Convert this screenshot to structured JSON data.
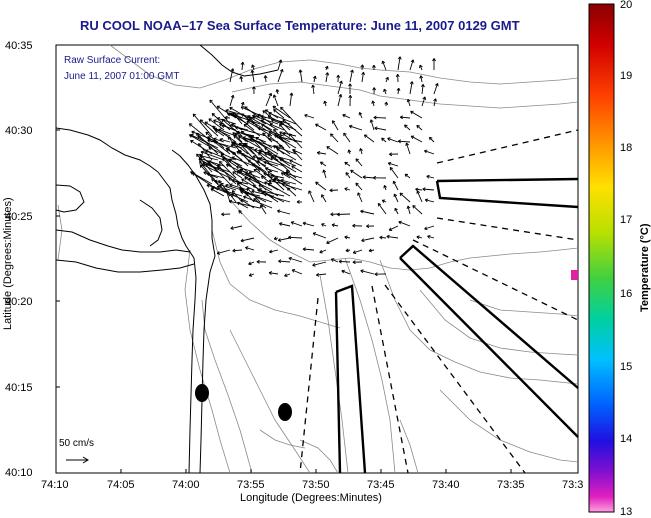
{
  "title": "RU COOL  NOAA–17  Sea Surface Temperature:  June 11, 2007 0129 GMT",
  "subtitle_line1": "Raw Surface Current:",
  "subtitle_line2": "June 11, 2007 01:00 GMT",
  "x_axis_label": "Longitude (Degrees:Minutes)",
  "y_axis_label": "Latitude (Degrees:Minutes)",
  "x_ticks": [
    "74:10",
    "74:05",
    "74:00",
    "73:55",
    "73:50",
    "73:45",
    "73:40",
    "73:35",
    "73:3"
  ],
  "y_ticks": [
    "40:35",
    "40:30",
    "40:25",
    "40:20",
    "40:15",
    "40:10"
  ],
  "colorbar": {
    "label": "Temperature (°C)",
    "min": 13,
    "max": 20,
    "ticks": [
      "20",
      "19",
      "18",
      "17",
      "16",
      "15",
      "14",
      "13"
    ]
  },
  "scale_label": "50 cm/s",
  "colors": {
    "title": "#1a1a8c",
    "land_outline": "#000000",
    "isobath": "#808080",
    "warm_patch": "#e020a0"
  },
  "map_features": {
    "current_vectors": "dense field of short black arrows over the harbor entrance",
    "shipping_channels": "dashed and solid black channel outlines",
    "markers": "two black filled ovals near shore"
  }
}
